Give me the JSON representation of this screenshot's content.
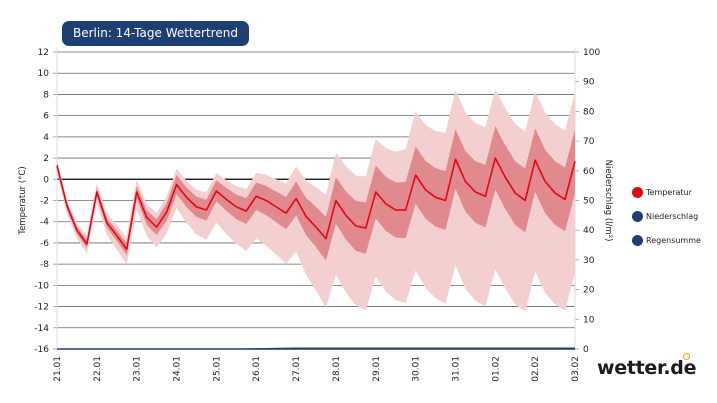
{
  "title": "Berlin: 14-Tage Wettertrend",
  "logo": "wetter.de",
  "legend": [
    {
      "label": "Temperatur",
      "color": "#e30613"
    },
    {
      "label": "Niederschlag",
      "color": "#1e3f73"
    },
    {
      "label": "Regensumme",
      "color": "#1e3f73"
    }
  ],
  "chart_data": {
    "type": "line",
    "ylabel": "Temperatur (°C)",
    "y2label": "Niederschlag (l/m²)",
    "ylim": [
      -16,
      12
    ],
    "y2lim": [
      0,
      100
    ],
    "yticks": [
      12,
      10,
      8,
      6,
      4,
      2,
      0,
      -2,
      -4,
      -6,
      -8,
      -10,
      -12,
      -14,
      -16
    ],
    "y2ticks": [
      100,
      90,
      80,
      70,
      60,
      50,
      40,
      30,
      20,
      10,
      0
    ],
    "xticks": [
      "21.01",
      "22.01",
      "23.01",
      "24.01",
      "25.01",
      "26.01",
      "27.01",
      "28.01",
      "29.01",
      "30.01",
      "31.01",
      "01.02",
      "02.02",
      "03.02"
    ],
    "grid": true,
    "legend_position": "right",
    "temperature": [
      1.3,
      -2.5,
      -4.8,
      -6.1,
      -1.2,
      -4.1,
      -5.3,
      -6.6,
      -1.2,
      -3.6,
      -4.5,
      -3.1,
      -0.5,
      -1.7,
      -2.6,
      -2.9,
      -1.1,
      -1.9,
      -2.6,
      -3.0,
      -1.6,
      -2.0,
      -2.6,
      -3.2,
      -1.8,
      -3.5,
      -4.5,
      -5.6,
      -2.0,
      -3.4,
      -4.4,
      -4.6,
      -1.2,
      -2.3,
      -2.9,
      -2.9,
      0.4,
      -1.0,
      -1.7,
      -2.0,
      1.9,
      -0.2,
      -1.2,
      -1.6,
      2.0,
      0.2,
      -1.3,
      -2.0,
      1.8,
      -0.2,
      -1.3,
      -1.9,
      1.7
    ],
    "inner_band_spread": [
      0.3,
      0.4,
      0.6,
      0.9,
      1.0,
      1.3,
      1.6,
      2.2,
      2.5,
      2.7,
      2.8,
      3.0,
      3.0,
      3.0
    ],
    "outer_band_spread_high": [
      0.5,
      0.8,
      1.2,
      1.5,
      1.7,
      2.2,
      3.0,
      4.5,
      5.0,
      6.0,
      6.5,
      6.5,
      6.5,
      6.5
    ],
    "outer_band_spread_low": [
      0.6,
      1.0,
      1.6,
      2.2,
      3.0,
      4.0,
      5.0,
      7.0,
      8.0,
      9.0,
      10.0,
      10.5,
      10.5,
      10.5
    ],
    "precipitation": [
      0,
      0,
      0,
      0,
      0,
      0.3,
      0.5,
      0.5,
      0.5,
      0.5,
      0.5,
      0.5,
      0.5,
      0.5
    ],
    "rain_sum": [
      0,
      0,
      0,
      0,
      0,
      0,
      0,
      0,
      0,
      0,
      0,
      0,
      0,
      0
    ]
  }
}
